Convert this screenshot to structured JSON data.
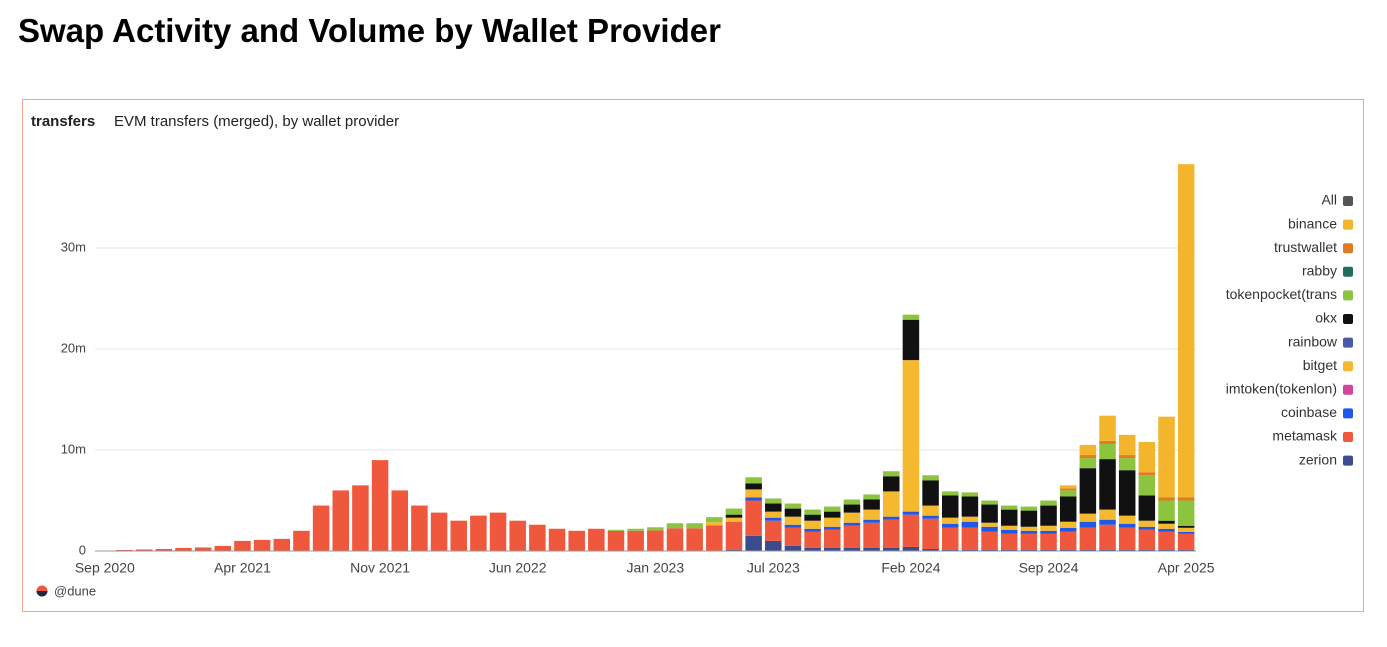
{
  "header": {
    "title": "Swap Activity and Volume by Wallet Provider"
  },
  "footer": "@dune",
  "chart_data": {
    "type": "stacked-bar",
    "title": "transfers",
    "subtitle": "EVM transfers (merged), by wallet provider",
    "categories": [
      "Sep 2020",
      null,
      null,
      null,
      null,
      null,
      null,
      "Apr 2021",
      null,
      null,
      null,
      null,
      null,
      null,
      "Nov 2021",
      null,
      null,
      null,
      null,
      null,
      null,
      "Jun 2022",
      null,
      null,
      null,
      null,
      null,
      null,
      "Jan 2023",
      null,
      null,
      null,
      null,
      null,
      "Jul 2023",
      null,
      null,
      null,
      null,
      null,
      null,
      "Feb 2024",
      null,
      null,
      null,
      null,
      null,
      null,
      "Sep 2024",
      null,
      null,
      null,
      null,
      null,
      null,
      "Apr 2025"
    ],
    "ylim": [
      0,
      40
    ],
    "yticks": [
      0,
      {
        "value": 10,
        "label": "10m"
      },
      {
        "value": 20,
        "label": "20m"
      },
      {
        "value": 30,
        "label": "30m"
      }
    ],
    "grid": true,
    "legend": "right",
    "series": [
      {
        "name": "zerion",
        "color": "#3c4a8f",
        "values": [
          0,
          0,
          0,
          0,
          0,
          0,
          0,
          0,
          0,
          0,
          0,
          0,
          0,
          0,
          0,
          0,
          0,
          0,
          0,
          0,
          0,
          0,
          0,
          0,
          0,
          0,
          0,
          0,
          0.05,
          0.05,
          0.05,
          0.05,
          0.1,
          1.5,
          1.0,
          0.5,
          0.3,
          0.3,
          0.3,
          0.3,
          0.3,
          0.4,
          0.2,
          0.1,
          0.1,
          0.1,
          0.1,
          0.1,
          0.1,
          0.1,
          0.1,
          0.1,
          0.1,
          0.1,
          0.1,
          0.1
        ]
      },
      {
        "name": "metamask",
        "color": "#f0583e",
        "values": [
          0.05,
          0.1,
          0.15,
          0.2,
          0.3,
          0.35,
          0.5,
          1.0,
          1.1,
          1.2,
          2.0,
          4.5,
          6.0,
          6.5,
          9.0,
          6.0,
          4.5,
          3.8,
          3.0,
          3.5,
          3.8,
          3.0,
          2.6,
          2.2,
          2.0,
          2.2,
          2.0,
          2.0,
          2.0,
          2.2,
          2.2,
          2.5,
          2.8,
          3.5,
          2.0,
          1.8,
          1.6,
          1.8,
          2.2,
          2.5,
          2.8,
          3.2,
          3.0,
          2.2,
          2.2,
          1.8,
          1.6,
          1.6,
          1.6,
          1.8,
          2.2,
          2.5,
          2.2,
          2.0,
          1.8,
          1.6
        ]
      },
      {
        "name": "coinbase",
        "color": "#1f57e8",
        "values": [
          0,
          0,
          0,
          0,
          0,
          0,
          0,
          0,
          0,
          0,
          0,
          0,
          0,
          0,
          0,
          0,
          0,
          0,
          0,
          0,
          0,
          0,
          0,
          0,
          0,
          0,
          0,
          0,
          0,
          0,
          0,
          0,
          0,
          0.3,
          0.3,
          0.3,
          0.3,
          0.3,
          0.3,
          0.3,
          0.3,
          0.3,
          0.3,
          0.4,
          0.6,
          0.5,
          0.4,
          0.3,
          0.3,
          0.4,
          0.6,
          0.5,
          0.4,
          0.3,
          0.3,
          0.2
        ]
      },
      {
        "name": "imtoken(tokenlon)",
        "color": "#d0479a",
        "values": [
          0,
          0,
          0,
          0,
          0,
          0,
          0,
          0,
          0,
          0,
          0,
          0,
          0,
          0,
          0,
          0,
          0,
          0,
          0,
          0,
          0,
          0,
          0,
          0,
          0,
          0,
          0,
          0,
          0,
          0,
          0,
          0,
          0,
          0,
          0,
          0,
          0,
          0,
          0,
          0,
          0,
          0,
          0,
          0,
          0,
          0,
          0,
          0,
          0,
          0,
          0,
          0,
          0,
          0,
          0,
          0
        ]
      },
      {
        "name": "bitget",
        "color": "#f5b82e",
        "values": [
          0,
          0,
          0,
          0,
          0,
          0,
          0,
          0,
          0,
          0,
          0,
          0,
          0,
          0,
          0,
          0,
          0,
          0,
          0,
          0,
          0,
          0,
          0,
          0,
          0,
          0,
          0,
          0,
          0,
          0,
          0,
          0.3,
          0.4,
          0.8,
          0.6,
          0.8,
          0.8,
          0.9,
          1.0,
          1.0,
          2.5,
          15.0,
          1.0,
          0.6,
          0.5,
          0.4,
          0.4,
          0.4,
          0.5,
          0.6,
          0.8,
          1.0,
          0.8,
          0.6,
          0.5,
          0.4
        ]
      },
      {
        "name": "rainbow",
        "color": "#4b5aa8",
        "values": [
          0,
          0,
          0,
          0,
          0,
          0,
          0,
          0,
          0,
          0,
          0,
          0,
          0,
          0,
          0,
          0,
          0,
          0,
          0,
          0,
          0,
          0,
          0,
          0,
          0,
          0,
          0,
          0,
          0,
          0,
          0,
          0,
          0,
          0,
          0,
          0,
          0,
          0,
          0,
          0,
          0,
          0,
          0,
          0,
          0,
          0,
          0,
          0,
          0,
          0,
          0,
          0,
          0,
          0,
          0,
          0
        ]
      },
      {
        "name": "okx",
        "color": "#111111",
        "values": [
          0,
          0,
          0,
          0,
          0,
          0,
          0,
          0,
          0,
          0,
          0,
          0,
          0,
          0,
          0,
          0,
          0,
          0,
          0,
          0,
          0,
          0,
          0,
          0,
          0,
          0,
          0,
          0,
          0,
          0,
          0,
          0,
          0.3,
          0.6,
          0.8,
          0.8,
          0.6,
          0.6,
          0.8,
          1.0,
          1.5,
          4.0,
          2.5,
          2.2,
          2.0,
          1.8,
          1.6,
          1.6,
          2.0,
          2.5,
          4.5,
          5.0,
          4.5,
          2.5,
          0.3,
          0.2
        ]
      },
      {
        "name": "tokenpocket(trans",
        "color": "#8cc43f",
        "values": [
          0,
          0,
          0,
          0,
          0,
          0,
          0,
          0,
          0,
          0,
          0,
          0,
          0,
          0,
          0,
          0,
          0,
          0,
          0,
          0,
          0,
          0,
          0,
          0,
          0,
          0,
          0.1,
          0.2,
          0.3,
          0.5,
          0.5,
          0.5,
          0.6,
          0.6,
          0.5,
          0.5,
          0.5,
          0.5,
          0.5,
          0.5,
          0.5,
          0.5,
          0.5,
          0.4,
          0.4,
          0.4,
          0.4,
          0.4,
          0.5,
          0.6,
          1.0,
          1.5,
          1.2,
          2.0,
          2.0,
          2.5
        ]
      },
      {
        "name": "rabby",
        "color": "#1f6f5f",
        "values": [
          0,
          0,
          0,
          0,
          0,
          0,
          0,
          0,
          0,
          0,
          0,
          0,
          0,
          0,
          0,
          0,
          0,
          0,
          0,
          0,
          0,
          0,
          0,
          0,
          0,
          0,
          0,
          0,
          0,
          0,
          0,
          0,
          0,
          0,
          0,
          0,
          0,
          0,
          0,
          0,
          0,
          0,
          0,
          0,
          0,
          0,
          0,
          0,
          0,
          0,
          0,
          0,
          0,
          0,
          0,
          0
        ]
      },
      {
        "name": "trustwallet",
        "color": "#e07b23",
        "values": [
          0,
          0,
          0,
          0,
          0,
          0,
          0,
          0,
          0,
          0,
          0,
          0,
          0,
          0,
          0,
          0,
          0,
          0,
          0,
          0,
          0,
          0,
          0,
          0,
          0,
          0,
          0,
          0,
          0,
          0,
          0,
          0,
          0,
          0,
          0,
          0,
          0,
          0,
          0,
          0,
          0,
          0,
          0,
          0,
          0,
          0,
          0,
          0,
          0,
          0.2,
          0.3,
          0.3,
          0.3,
          0.3,
          0.3,
          0.3
        ]
      },
      {
        "name": "binance",
        "color": "#f3b52b",
        "values": [
          0,
          0,
          0,
          0,
          0,
          0,
          0,
          0,
          0,
          0,
          0,
          0,
          0,
          0,
          0,
          0,
          0,
          0,
          0,
          0,
          0,
          0,
          0,
          0,
          0,
          0,
          0,
          0,
          0,
          0,
          0,
          0,
          0,
          0,
          0,
          0,
          0,
          0,
          0,
          0,
          0,
          0,
          0,
          0,
          0,
          0,
          0,
          0,
          0,
          0.3,
          1.0,
          2.5,
          2.0,
          3.0,
          8.0,
          33.0
        ]
      },
      {
        "name": "All",
        "color": "#555555",
        "values": [
          0,
          0,
          0,
          0,
          0,
          0,
          0,
          0,
          0,
          0,
          0,
          0,
          0,
          0,
          0,
          0,
          0,
          0,
          0,
          0,
          0,
          0,
          0,
          0,
          0,
          0,
          0,
          0,
          0,
          0,
          0,
          0,
          0,
          0,
          0,
          0,
          0,
          0,
          0,
          0,
          0,
          0,
          0,
          0,
          0,
          0,
          0,
          0,
          0,
          0,
          0,
          0,
          0,
          0,
          0,
          0
        ]
      }
    ]
  }
}
